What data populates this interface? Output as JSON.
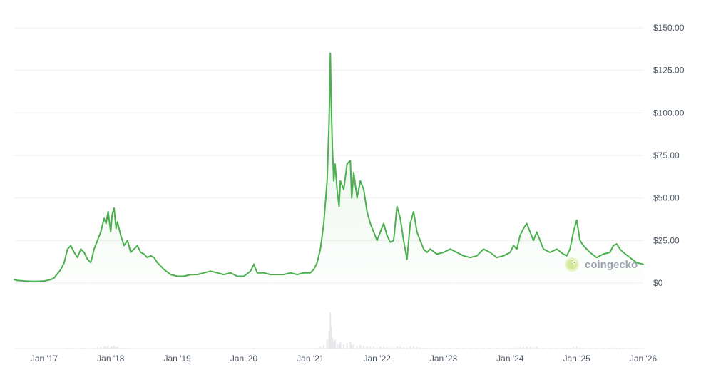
{
  "chart_data": {
    "type": "area",
    "ylim": [
      0,
      150
    ],
    "y_ticks": [
      "$150.00",
      "$125.00",
      "$100.00",
      "$75.00",
      "$50.00",
      "$25.00",
      "$0"
    ],
    "y_tick_values": [
      150,
      125,
      100,
      75,
      50,
      25,
      0
    ],
    "x_ticks": [
      "Jan '17",
      "Jan '18",
      "Jan '19",
      "Jan '20",
      "Jan '21",
      "Jan '22",
      "Jan '23",
      "Jan '24",
      "Jan '25",
      "Jan '26"
    ],
    "x_tick_values": [
      2017.0,
      2018.0,
      2019.0,
      2020.0,
      2021.0,
      2022.0,
      2023.0,
      2024.0,
      2025.0,
      2026.0
    ],
    "xlim": [
      2016.55,
      2026.0
    ],
    "grid": true,
    "line_color": "#4caf50",
    "fill_color": "#e8f5e9",
    "volume_color": "#e5e7eb",
    "series": [
      {
        "x": [
          2016.55,
          2016.6,
          2016.7,
          2016.8,
          2016.9,
          2017.0,
          2017.1,
          2017.15,
          2017.25,
          2017.3,
          2017.35,
          2017.4,
          2017.45,
          2017.5,
          2017.55,
          2017.6,
          2017.65,
          2017.7,
          2017.75,
          2017.8,
          2017.85,
          2017.9,
          2017.93,
          2017.96,
          2018.0,
          2018.02,
          2018.05,
          2018.08,
          2018.1,
          2018.15,
          2018.2,
          2018.25,
          2018.3,
          2018.35,
          2018.4,
          2018.45,
          2018.5,
          2018.55,
          2018.6,
          2018.65,
          2018.7,
          2018.8,
          2018.9,
          2019.0,
          2019.1,
          2019.2,
          2019.3,
          2019.4,
          2019.5,
          2019.6,
          2019.7,
          2019.8,
          2019.9,
          2020.0,
          2020.1,
          2020.15,
          2020.2,
          2020.3,
          2020.4,
          2020.5,
          2020.6,
          2020.7,
          2020.8,
          2020.9,
          2021.0,
          2021.05,
          2021.1,
          2021.15,
          2021.2,
          2021.25,
          2021.28,
          2021.3,
          2021.31,
          2021.33,
          2021.35,
          2021.37,
          2021.4,
          2021.43,
          2021.45,
          2021.5,
          2021.55,
          2021.6,
          2021.62,
          2021.65,
          2021.7,
          2021.75,
          2021.8,
          2021.85,
          2021.9,
          2021.95,
          2022.0,
          2022.05,
          2022.1,
          2022.15,
          2022.2,
          2022.25,
          2022.3,
          2022.35,
          2022.4,
          2022.45,
          2022.5,
          2022.55,
          2022.6,
          2022.65,
          2022.7,
          2022.75,
          2022.8,
          2022.9,
          2023.0,
          2023.1,
          2023.2,
          2023.3,
          2023.4,
          2023.5,
          2023.6,
          2023.7,
          2023.8,
          2023.9,
          2024.0,
          2024.05,
          2024.1,
          2024.15,
          2024.2,
          2024.25,
          2024.3,
          2024.35,
          2024.4,
          2024.5,
          2024.6,
          2024.7,
          2024.8,
          2024.85,
          2024.9,
          2024.95,
          2025.0,
          2025.05,
          2025.1,
          2025.2,
          2025.3,
          2025.4,
          2025.5,
          2025.55,
          2025.6,
          2025.65,
          2025.7,
          2025.8,
          2025.9,
          2026.0
        ],
        "values": [
          2,
          1.5,
          1.2,
          1,
          1,
          1.2,
          2,
          3,
          8,
          12,
          20,
          22,
          18,
          15,
          20,
          18,
          14,
          12,
          20,
          25,
          30,
          38,
          35,
          42,
          30,
          40,
          44,
          32,
          36,
          28,
          22,
          25,
          18,
          20,
          22,
          18,
          17,
          15,
          16,
          15,
          12,
          8,
          5,
          4,
          4,
          5,
          5,
          6,
          7,
          6,
          5,
          6,
          4,
          4,
          7,
          11,
          6,
          6,
          5,
          5,
          5,
          6,
          5,
          6,
          6,
          8,
          12,
          20,
          35,
          60,
          95,
          135,
          110,
          80,
          60,
          70,
          55,
          45,
          60,
          55,
          70,
          72,
          50,
          65,
          50,
          60,
          55,
          42,
          35,
          30,
          25,
          30,
          35,
          28,
          24,
          25,
          45,
          38,
          25,
          14,
          35,
          42,
          30,
          25,
          20,
          18,
          20,
          17,
          18,
          20,
          18,
          16,
          15,
          16,
          20,
          18,
          15,
          16,
          18,
          22,
          20,
          28,
          32,
          35,
          30,
          25,
          30,
          20,
          18,
          20,
          17,
          16,
          20,
          30,
          37,
          25,
          22,
          18,
          15,
          17,
          18,
          22,
          23,
          20,
          18,
          15,
          12,
          11
        ],
        "volume": [
          0,
          0,
          0,
          0,
          0,
          0,
          0,
          0,
          0.01,
          0.01,
          0.02,
          0.02,
          0.01,
          0.01,
          0.02,
          0.02,
          0.01,
          0.01,
          0.02,
          0.03,
          0.04,
          0.06,
          0.05,
          0.08,
          0.05,
          0.06,
          0.07,
          0.04,
          0.04,
          0.03,
          0.02,
          0.02,
          0.01,
          0.01,
          0.01,
          0.01,
          0.01,
          0.01,
          0.01,
          0.01,
          0.01,
          0.01,
          0.01,
          0,
          0,
          0.01,
          0.01,
          0.01,
          0.01,
          0.01,
          0,
          0.01,
          0,
          0,
          0.01,
          0.02,
          0.01,
          0.01,
          0,
          0,
          0,
          0.01,
          0,
          0.01,
          0.01,
          0.02,
          0.03,
          0.05,
          0.1,
          0.25,
          0.5,
          1,
          0.6,
          0.3,
          0.2,
          0.25,
          0.15,
          0.12,
          0.18,
          0.12,
          0.15,
          0.18,
          0.1,
          0.12,
          0.08,
          0.1,
          0.08,
          0.06,
          0.05,
          0.04,
          0.04,
          0.04,
          0.05,
          0.04,
          0.03,
          0.03,
          0.06,
          0.05,
          0.04,
          0.03,
          0.05,
          0.06,
          0.04,
          0.03,
          0.02,
          0.02,
          0.02,
          0.02,
          0.02,
          0.02,
          0.02,
          0.02,
          0.02,
          0.02,
          0.02,
          0.02,
          0.02,
          0.02,
          0.02,
          0.03,
          0.03,
          0.04,
          0.05,
          0.05,
          0.04,
          0.03,
          0.04,
          0.02,
          0.02,
          0.02,
          0.02,
          0.02,
          0.03,
          0.04,
          0.05,
          0.03,
          0.02,
          0.02,
          0.02,
          0.02,
          0.02,
          0.03,
          0.03,
          0.02,
          0.02,
          0.02,
          0.02,
          0.02
        ]
      }
    ]
  },
  "watermark": {
    "brand_name": "coingecko",
    "icon": "gecko-logo-icon"
  }
}
